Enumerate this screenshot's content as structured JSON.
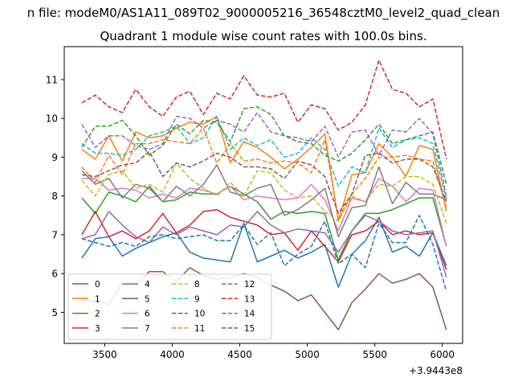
{
  "figure": {
    "suptitle": "n file: modeM0/AS1A11_089T02_9000005216_36548cztM0_level2_quad_clean",
    "offset_text": "+3.9443e8"
  },
  "chart_data": {
    "type": "line",
    "title": "Quadrant 1 module wise count rates with 100.0s bins.",
    "xlabel": "",
    "ylabel": "",
    "xlim": [
      3200,
      6150
    ],
    "ylim": [
      4.2,
      11.85
    ],
    "x_ticks": [
      3500,
      4000,
      4500,
      5000,
      5500,
      6000
    ],
    "y_ticks": [
      5,
      6,
      7,
      8,
      9,
      10,
      11
    ],
    "grid": false,
    "legend_position": "lower-left",
    "legend_columns": 4,
    "x": [
      3330,
      3430,
      3530,
      3630,
      3730,
      3830,
      3930,
      4030,
      4130,
      4230,
      4330,
      4430,
      4530,
      4630,
      4730,
      4830,
      4930,
      5030,
      5130,
      5230,
      5330,
      5430,
      5530,
      5630,
      5730,
      5830,
      5930,
      6030
    ],
    "series": [
      {
        "name": "0",
        "color": "#1f77b4",
        "dash": "solid",
        "values": [
          6.4,
          6.9,
          6.95,
          6.45,
          6.65,
          6.8,
          6.95,
          7.05,
          6.55,
          6.4,
          6.35,
          6.3,
          7.3,
          6.3,
          6.45,
          6.6,
          6.4,
          6.55,
          6.75,
          5.65,
          6.5,
          6.85,
          7.45,
          6.55,
          6.7,
          6.45,
          7.05,
          6.2
        ]
      },
      {
        "name": "1",
        "color": "#ff7f0e",
        "dash": "solid",
        "values": [
          9.2,
          8.95,
          9.55,
          8.9,
          9.65,
          9.5,
          9.55,
          9.75,
          9.9,
          9.85,
          10.05,
          8.85,
          9.4,
          9.25,
          9.0,
          8.7,
          8.95,
          9.25,
          9.6,
          7.35,
          8.55,
          8.6,
          9.35,
          9.0,
          8.5,
          9.3,
          9.2,
          7.6
        ]
      },
      {
        "name": "2",
        "color": "#2ca02c",
        "dash": "solid",
        "values": [
          7.95,
          7.55,
          8.1,
          8.0,
          7.85,
          8.25,
          7.85,
          7.9,
          8.1,
          8.05,
          8.05,
          8.25,
          8.05,
          7.85,
          7.4,
          7.6,
          7.55,
          7.6,
          7.55,
          6.35,
          7.1,
          7.55,
          7.55,
          7.65,
          7.8,
          7.95,
          7.95,
          6.7
        ]
      },
      {
        "name": "3",
        "color": "#d62728",
        "dash": "solid",
        "values": [
          7.0,
          7.6,
          6.95,
          7.1,
          6.9,
          7.1,
          7.55,
          7.05,
          7.25,
          7.6,
          7.65,
          7.45,
          7.35,
          7.25,
          7.0,
          7.05,
          6.6,
          7.1,
          6.7,
          6.3,
          7.0,
          7.1,
          7.35,
          7.0,
          7.1,
          7.0,
          7.05,
          6.1
        ]
      },
      {
        "name": "4",
        "color": "#9467bd",
        "dash": "solid",
        "values": [
          6.9,
          7.0,
          7.6,
          7.25,
          6.95,
          6.8,
          7.2,
          7.0,
          7.2,
          7.1,
          7.0,
          7.25,
          7.2,
          7.6,
          7.25,
          7.05,
          7.15,
          7.1,
          7.05,
          6.55,
          7.1,
          7.5,
          7.35,
          7.1,
          7.0,
          7.05,
          7.1,
          5.9
        ]
      },
      {
        "name": "5",
        "color": "#8c564b",
        "dash": "solid",
        "values": [
          5.3,
          5.3,
          5.2,
          5.75,
          5.7,
          6.05,
          6.05,
          5.8,
          6.15,
          5.95,
          5.85,
          5.9,
          6.0,
          5.9,
          5.7,
          5.55,
          5.3,
          5.45,
          5.0,
          4.55,
          5.25,
          5.6,
          6.0,
          5.75,
          5.85,
          6.0,
          5.65,
          4.55
        ]
      },
      {
        "name": "6",
        "color": "#e377c2",
        "dash": "solid",
        "values": [
          8.45,
          8.45,
          8.15,
          8.2,
          8.15,
          7.95,
          8.05,
          7.95,
          8.2,
          8.15,
          8.05,
          8.25,
          7.9,
          8.0,
          7.95,
          7.9,
          7.95,
          8.3,
          7.9,
          7.1,
          7.95,
          7.85,
          8.45,
          8.25,
          7.85,
          8.2,
          8.15,
          6.7
        ]
      },
      {
        "name": "7",
        "color": "#7f7f7f",
        "dash": "solid",
        "values": [
          8.65,
          8.3,
          8.45,
          7.95,
          8.3,
          8.2,
          7.85,
          8.25,
          8.0,
          8.3,
          8.8,
          8.1,
          8.0,
          8.2,
          8.3,
          7.5,
          7.65,
          7.9,
          8.2,
          6.95,
          7.7,
          7.75,
          8.75,
          7.8,
          8.35,
          8.05,
          8.05,
          7.9
        ]
      },
      {
        "name": "8",
        "color": "#bcbd22",
        "dash": "dashed",
        "values": [
          8.4,
          8.0,
          8.55,
          8.65,
          8.2,
          8.3,
          8.1,
          8.85,
          8.45,
          8.2,
          8.0,
          8.35,
          8.0,
          8.65,
          8.6,
          8.15,
          7.95,
          8.0,
          7.6,
          7.35,
          8.0,
          7.85,
          8.3,
          8.25,
          8.5,
          8.5,
          8.3,
          7.3
        ]
      },
      {
        "name": "9",
        "color": "#17becf",
        "dash": "dashed",
        "values": [
          9.35,
          9.1,
          9.1,
          9.05,
          9.2,
          9.55,
          9.65,
          9.8,
          9.35,
          9.5,
          10.05,
          9.2,
          9.5,
          9.3,
          9.45,
          9.0,
          9.1,
          9.5,
          9.2,
          8.25,
          8.75,
          8.6,
          9.75,
          9.25,
          9.45,
          9.5,
          9.35,
          7.9
        ]
      },
      {
        "name": "10",
        "color": "#1f77b4",
        "dash": "dashed",
        "values": [
          6.9,
          6.8,
          6.7,
          6.8,
          6.7,
          6.95,
          7.0,
          6.9,
          6.95,
          7.0,
          6.85,
          6.85,
          7.25,
          6.75,
          7.05,
          6.2,
          6.5,
          6.7,
          7.35,
          6.25,
          6.5,
          6.15,
          7.3,
          6.8,
          6.8,
          7.5,
          6.75,
          5.55
        ]
      },
      {
        "name": "11",
        "color": "#ff7f0e",
        "dash": "dashed",
        "values": [
          8.75,
          8.35,
          9.05,
          8.55,
          9.35,
          9.35,
          9.45,
          9.4,
          9.35,
          9.75,
          8.85,
          9.35,
          8.9,
          8.95,
          8.85,
          8.9,
          8.85,
          8.6,
          9.45,
          7.4,
          8.05,
          8.45,
          9.0,
          9.0,
          9.05,
          8.95,
          8.9,
          7.7
        ]
      },
      {
        "name": "12",
        "color": "#2ca02c",
        "dash": "dashed",
        "values": [
          9.25,
          9.8,
          9.8,
          9.95,
          9.55,
          9.05,
          9.3,
          9.85,
          9.6,
          9.95,
          9.9,
          9.4,
          10.25,
          10.3,
          10.1,
          9.55,
          9.4,
          9.35,
          9.05,
          8.9,
          9.1,
          9.45,
          9.85,
          9.35,
          9.45,
          9.55,
          9.65,
          8.3
        ]
      },
      {
        "name": "13",
        "color": "#d62728",
        "dash": "dashed",
        "values": [
          10.4,
          10.6,
          10.3,
          10.15,
          10.75,
          10.3,
          10.05,
          10.55,
          10.7,
          10.1,
          10.65,
          10.5,
          11.1,
          10.6,
          10.55,
          10.65,
          9.9,
          10.35,
          10.25,
          9.7,
          9.9,
          10.35,
          11.5,
          10.75,
          10.65,
          10.3,
          10.5,
          8.95
        ]
      },
      {
        "name": "14",
        "color": "#9467bd",
        "dash": "dashed",
        "values": [
          9.85,
          9.25,
          9.55,
          9.55,
          9.3,
          9.2,
          9.35,
          10.05,
          10.0,
          9.75,
          9.95,
          9.85,
          9.65,
          10.15,
          9.65,
          9.55,
          9.5,
          9.4,
          9.8,
          9.0,
          9.65,
          9.7,
          9.05,
          9.7,
          9.65,
          10.0,
          9.6,
          8.0
        ]
      },
      {
        "name": "15",
        "color": "#8c564b",
        "dash": "dashed",
        "values": [
          8.55,
          8.5,
          8.65,
          8.8,
          8.85,
          9.15,
          8.5,
          8.85,
          8.75,
          8.9,
          9.1,
          9.0,
          8.75,
          8.75,
          8.7,
          8.45,
          8.9,
          8.8,
          8.5,
          7.55,
          8.05,
          9.05,
          9.1,
          8.85,
          8.95,
          8.95,
          8.75,
          7.85
        ]
      }
    ]
  }
}
